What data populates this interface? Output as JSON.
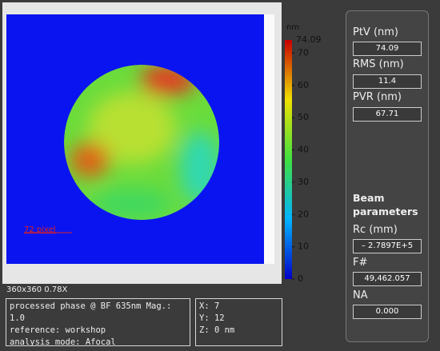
{
  "image": {
    "scale_label": "72 pixel",
    "info": "360x360 0.78X",
    "colorbar": {
      "unit": "nm",
      "max": 74.09,
      "ticks": [
        0,
        10,
        20,
        30,
        40,
        50,
        60,
        70
      ]
    }
  },
  "details": {
    "lines": [
      "processed phase @ BF 635nm Mag.: 1.0",
      "reference: workshop",
      "analysis mode: Afocal"
    ]
  },
  "cursor": {
    "lines": [
      "X: 7",
      "Y: 12",
      "Z: 0 nm"
    ]
  },
  "panel": {
    "fields": [
      {
        "label": "PtV (nm)",
        "value": "74.09"
      },
      {
        "label": "RMS (nm)",
        "value": "11.4"
      },
      {
        "label": "PVR (nm)",
        "value": "67.71"
      }
    ],
    "beam_title": "Beam parameters",
    "beam_fields": [
      {
        "label": "Rc (mm)",
        "value": "– 2.7897E+5"
      },
      {
        "label": "F#",
        "value": "49,462.057"
      },
      {
        "label": "NA",
        "value": "0.000"
      }
    ]
  }
}
